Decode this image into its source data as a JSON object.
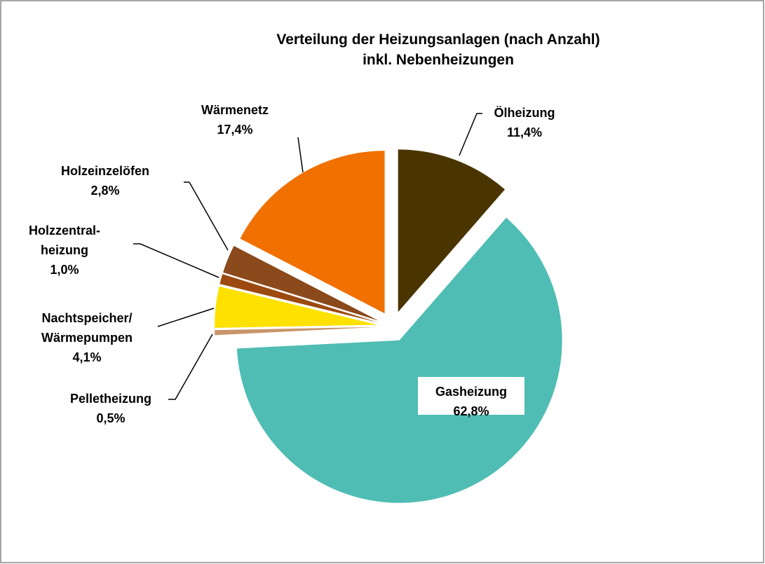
{
  "chart_data": {
    "type": "pie",
    "title": "Verteilung der Heizungsanlagen (nach Anzahl)\ninkl. Nebenheizungen",
    "categories": [
      "Ölheizung",
      "Gasheizung",
      "Pelletheizung",
      "Nachtspeicher/\nWärmepumpen",
      "Holzzentral-\nheizung",
      "Holzeinzelöfen",
      "Wärmenetz"
    ],
    "values": [
      11.4,
      62.8,
      0.5,
      4.1,
      1.0,
      2.8,
      17.4
    ],
    "value_labels": [
      "11,4%",
      "62,8%",
      "0,5%",
      "4,1%",
      "1,0%",
      "2,8%",
      "17,4%"
    ],
    "colors": [
      "#4a3500",
      "#4fbdb4",
      "#c8956a",
      "#ffe100",
      "#9c4a10",
      "#8b4a1c",
      "#f07000"
    ]
  }
}
